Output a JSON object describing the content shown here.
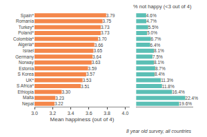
{
  "chart_data": [
    {
      "type": "bar",
      "orientation": "horizontal",
      "categories": [
        "Spain*",
        "Romania",
        "Turkey*",
        "Poland*",
        "Colombia*",
        "Algeria*",
        "Israel",
        "Germany",
        "Norway",
        "Estonia",
        "S Korea",
        "UK*",
        "S Africa*",
        "Ethiopia",
        "Malta",
        "Nepal"
      ],
      "values": [
        3.79,
        3.75,
        3.73,
        3.73,
        3.7,
        3.66,
        3.65,
        3.64,
        3.63,
        3.59,
        3.57,
        3.53,
        3.51,
        3.3,
        3.23,
        3.22
      ],
      "value_labels": [
        "3.79",
        "3.75",
        "3.73",
        "3.73",
        "3.70",
        "3.66",
        "3.65",
        "3.64",
        "3.63",
        "3.59",
        "3.57",
        "3.53",
        "3.51",
        "3.30",
        "3.23",
        "3.22"
      ],
      "data_labels": true,
      "color": "#F4874B",
      "xlabel": "Mean happiness (out of 4)",
      "xlim": [
        3.0,
        4.05
      ],
      "xticks": [
        {
          "value": 3.0,
          "label": "3.0"
        },
        {
          "value": 3.2,
          "label": "3.2"
        },
        {
          "value": 3.4,
          "label": "3.4"
        },
        {
          "value": 3.6,
          "label": "3.6"
        },
        {
          "value": 3.8,
          "label": "3.8"
        },
        {
          "value": 4.0,
          "label": "4.0"
        }
      ],
      "grid": false
    },
    {
      "type": "bar",
      "orientation": "horizontal",
      "title": "% not happy (<3 out of 4)",
      "categories": [
        "Spain*",
        "Romania",
        "Turkey*",
        "Poland*",
        "Colombia*",
        "Algeria*",
        "Israel",
        "Germany",
        "Norway",
        "Estonia",
        "S Korea",
        "UK*",
        "S Africa*",
        "Ethiopia",
        "Malta",
        "Nepal"
      ],
      "values": [
        4.6,
        4.7,
        5.5,
        5.0,
        6.7,
        6.4,
        8.1,
        7.5,
        8.1,
        8.7,
        8.4,
        11.3,
        11.8,
        16.4,
        22.4,
        19.6
      ],
      "value_labels": [
        "4.6%",
        "4.7%",
        "5.5%",
        "5.0%",
        "6.7%",
        "6.4%",
        "8.1%",
        "7.5%",
        "8.1%",
        "8.7%",
        "8.4%",
        "11.3%",
        "11.8%",
        "16.4%",
        "22.4%",
        "19.6%"
      ],
      "data_labels": true,
      "color": "#5BBFB5",
      "xlim": [
        0,
        26
      ],
      "tick_labels": false,
      "grid": false,
      "annotations": [
        "8 year old survey, all countries"
      ]
    }
  ]
}
